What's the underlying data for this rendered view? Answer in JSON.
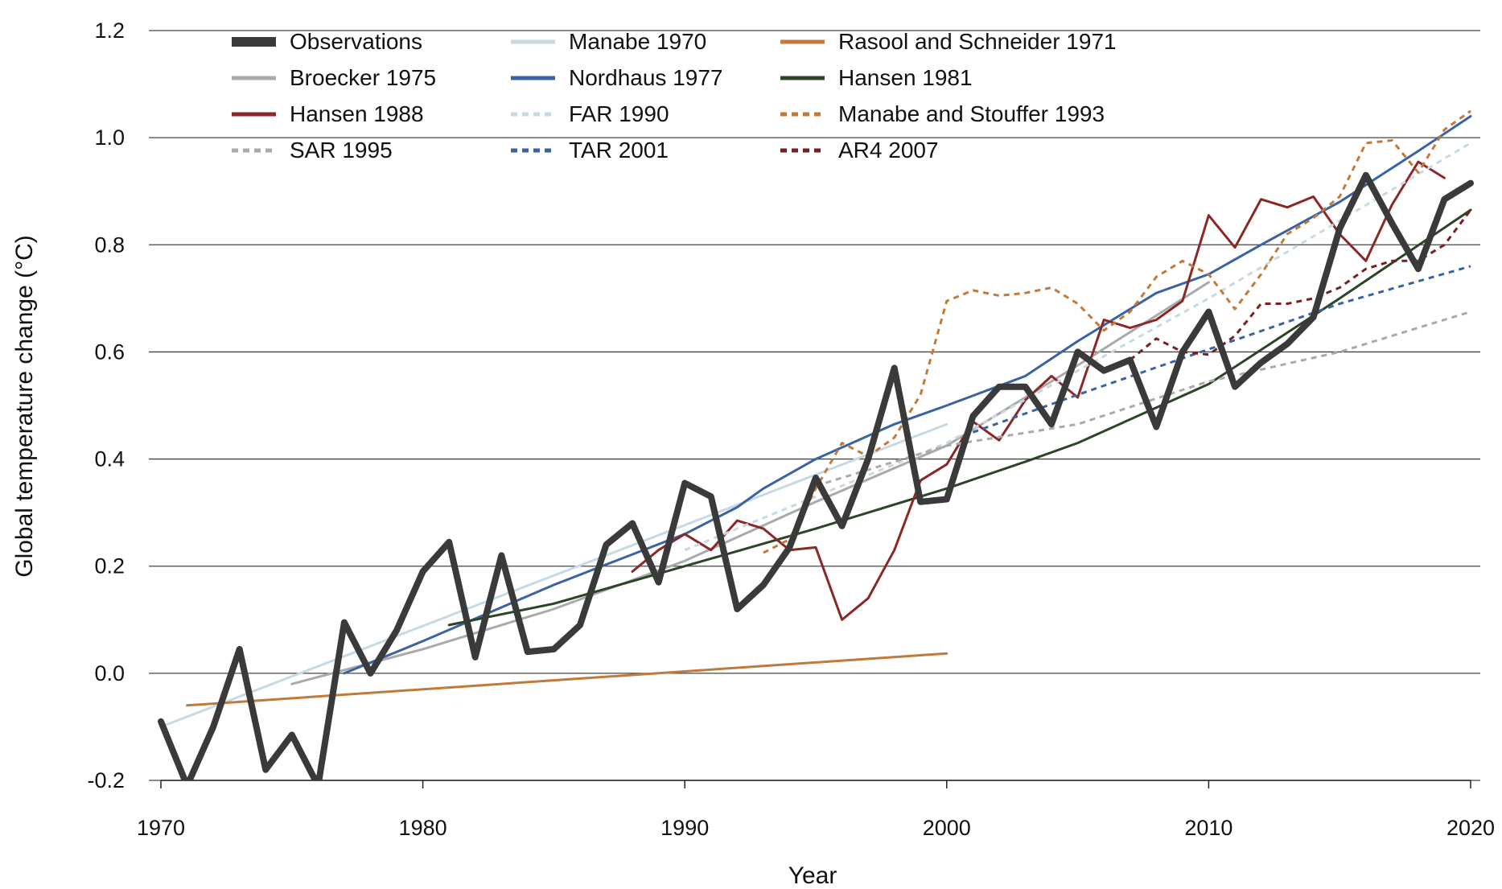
{
  "chart_data": {
    "type": "line",
    "title": "",
    "xlabel": "Year",
    "ylabel": "Global temperature change (°C)",
    "xlim": [
      1970,
      2020
    ],
    "ylim": [
      -0.2,
      1.2
    ],
    "x_ticks": [
      1970,
      1980,
      1990,
      2000,
      2010,
      2020
    ],
    "y_ticks": [
      -0.2,
      0.0,
      0.2,
      0.4,
      0.6,
      0.8,
      1.0,
      1.2
    ],
    "y_tick_labels": [
      "-0.2",
      "0.0",
      "0.2",
      "0.4",
      "0.6",
      "0.8",
      "1.0",
      "1.2"
    ],
    "grid": "horizontal",
    "legend": "top",
    "series": [
      {
        "name": "Observations",
        "color": "#3a3a3a",
        "dash": "solid",
        "weight": "bold",
        "x": [
          1970,
          1971,
          1972,
          1973,
          1974,
          1975,
          1976,
          1977,
          1978,
          1979,
          1980,
          1981,
          1982,
          1983,
          1984,
          1985,
          1986,
          1987,
          1988,
          1989,
          1990,
          1991,
          1992,
          1993,
          1994,
          1995,
          1996,
          1997,
          1998,
          1999,
          2000,
          2001,
          2002,
          2003,
          2004,
          2005,
          2006,
          2007,
          2008,
          2009,
          2010,
          2011,
          2012,
          2013,
          2014,
          2015,
          2016,
          2017,
          2018,
          2019,
          2020
        ],
        "y": [
          -0.09,
          -0.21,
          -0.1,
          0.045,
          -0.18,
          -0.115,
          -0.21,
          0.095,
          0.0,
          0.08,
          0.19,
          0.245,
          0.03,
          0.22,
          0.04,
          0.045,
          0.09,
          0.24,
          0.28,
          0.17,
          0.355,
          0.33,
          0.12,
          0.165,
          0.235,
          0.365,
          0.275,
          0.4,
          0.57,
          0.32,
          0.325,
          0.48,
          0.535,
          0.535,
          0.465,
          0.6,
          0.565,
          0.585,
          0.46,
          0.6,
          0.675,
          0.535,
          0.58,
          0.615,
          0.665,
          0.83,
          0.93,
          0.84,
          0.755,
          0.885,
          0.915
        ]
      },
      {
        "name": "Manabe 1970",
        "color": "#c6dae6",
        "dash": "solid",
        "weight": "normal",
        "x": [
          1970,
          2000
        ],
        "y": [
          -0.1,
          0.465
        ]
      },
      {
        "name": "Rasool and Schneider 1971",
        "color": "#c07a3a",
        "dash": "solid",
        "weight": "normal",
        "x": [
          1971,
          2000
        ],
        "y": [
          -0.06,
          0.037
        ]
      },
      {
        "name": "Broecker 1975",
        "color": "#aaaaaa",
        "dash": "solid",
        "weight": "normal",
        "x": [
          1975,
          1980,
          1985,
          1990,
          1995,
          2000,
          2005,
          2010
        ],
        "y": [
          -0.02,
          0.045,
          0.12,
          0.21,
          0.32,
          0.425,
          0.575,
          0.73
        ]
      },
      {
        "name": "Nordhaus 1977",
        "color": "#3a63a3",
        "dash": "solid",
        "weight": "normal",
        "x": [
          1977,
          1980,
          1985,
          1990,
          1992,
          1993,
          1995,
          1998,
          2000,
          2003,
          2005,
          2008,
          2010,
          2012,
          2015,
          2018,
          2020
        ],
        "y": [
          0.0,
          0.06,
          0.165,
          0.26,
          0.31,
          0.345,
          0.4,
          0.465,
          0.5,
          0.555,
          0.62,
          0.71,
          0.745,
          0.8,
          0.88,
          0.975,
          1.04
        ]
      },
      {
        "name": "Hansen 1981",
        "color": "#2b4526",
        "dash": "solid",
        "weight": "normal",
        "x": [
          1981,
          1985,
          1990,
          1995,
          2000,
          2003,
          2005,
          2010,
          2015,
          2020
        ],
        "y": [
          0.09,
          0.13,
          0.2,
          0.27,
          0.345,
          0.395,
          0.43,
          0.54,
          0.7,
          0.865
        ]
      },
      {
        "name": "Hansen 1988",
        "color": "#8a2828",
        "dash": "solid",
        "weight": "normal",
        "x": [
          1988,
          1989,
          1990,
          1991,
          1992,
          1993,
          1994,
          1995,
          1996,
          1997,
          1998,
          1999,
          2000,
          2001,
          2002,
          2003,
          2004,
          2005,
          2006,
          2007,
          2008,
          2009,
          2010,
          2011,
          2012,
          2013,
          2014,
          2015,
          2016,
          2017,
          2018,
          2019
        ],
        "y": [
          0.19,
          0.23,
          0.26,
          0.23,
          0.285,
          0.27,
          0.23,
          0.235,
          0.1,
          0.14,
          0.23,
          0.36,
          0.39,
          0.47,
          0.435,
          0.51,
          0.555,
          0.515,
          0.66,
          0.645,
          0.66,
          0.695,
          0.855,
          0.795,
          0.885,
          0.87,
          0.89,
          0.82,
          0.77,
          0.875,
          0.955,
          0.925
        ]
      },
      {
        "name": "FAR 1990",
        "color": "#c6dae6",
        "dash": "dotted",
        "weight": "normal",
        "x": [
          1990,
          2000,
          2010,
          2020
        ],
        "y": [
          0.23,
          0.43,
          0.7,
          0.99
        ]
      },
      {
        "name": "Manabe and Stouffer 1993",
        "color": "#c07a3a",
        "dash": "dotted",
        "weight": "normal",
        "x": [
          1993,
          1994,
          1995,
          1996,
          1997,
          1998,
          1999,
          2000,
          2001,
          2002,
          2003,
          2004,
          2005,
          2006,
          2007,
          2008,
          2009,
          2010,
          2011,
          2012,
          2013,
          2014,
          2015,
          2016,
          2017,
          2018,
          2019,
          2020
        ],
        "y": [
          0.225,
          0.25,
          0.345,
          0.43,
          0.405,
          0.44,
          0.52,
          0.695,
          0.715,
          0.705,
          0.71,
          0.72,
          0.69,
          0.64,
          0.675,
          0.74,
          0.77,
          0.745,
          0.68,
          0.745,
          0.82,
          0.85,
          0.89,
          0.99,
          0.995,
          0.935,
          1.015,
          1.05
        ]
      },
      {
        "name": "SAR 1995",
        "color": "#aaaaaa",
        "dash": "dotted",
        "weight": "normal",
        "x": [
          1995,
          2000,
          2005,
          2010,
          2015,
          2020
        ],
        "y": [
          0.35,
          0.425,
          0.465,
          0.545,
          0.6,
          0.675
        ]
      },
      {
        "name": "TAR 2001",
        "color": "#3a63a3",
        "dash": "dotted",
        "weight": "normal",
        "x": [
          2001,
          2005,
          2010,
          2015,
          2020
        ],
        "y": [
          0.45,
          0.52,
          0.605,
          0.69,
          0.76
        ]
      },
      {
        "name": "AR4 2007",
        "color": "#7a1f1f",
        "dash": "dotted",
        "weight": "normal",
        "x": [
          2007,
          2008,
          2009,
          2010,
          2011,
          2012,
          2013,
          2014,
          2015,
          2016,
          2017,
          2018,
          2019,
          2020
        ],
        "y": [
          0.585,
          0.625,
          0.6,
          0.595,
          0.63,
          0.69,
          0.69,
          0.7,
          0.72,
          0.755,
          0.77,
          0.77,
          0.8,
          0.865
        ]
      }
    ]
  }
}
